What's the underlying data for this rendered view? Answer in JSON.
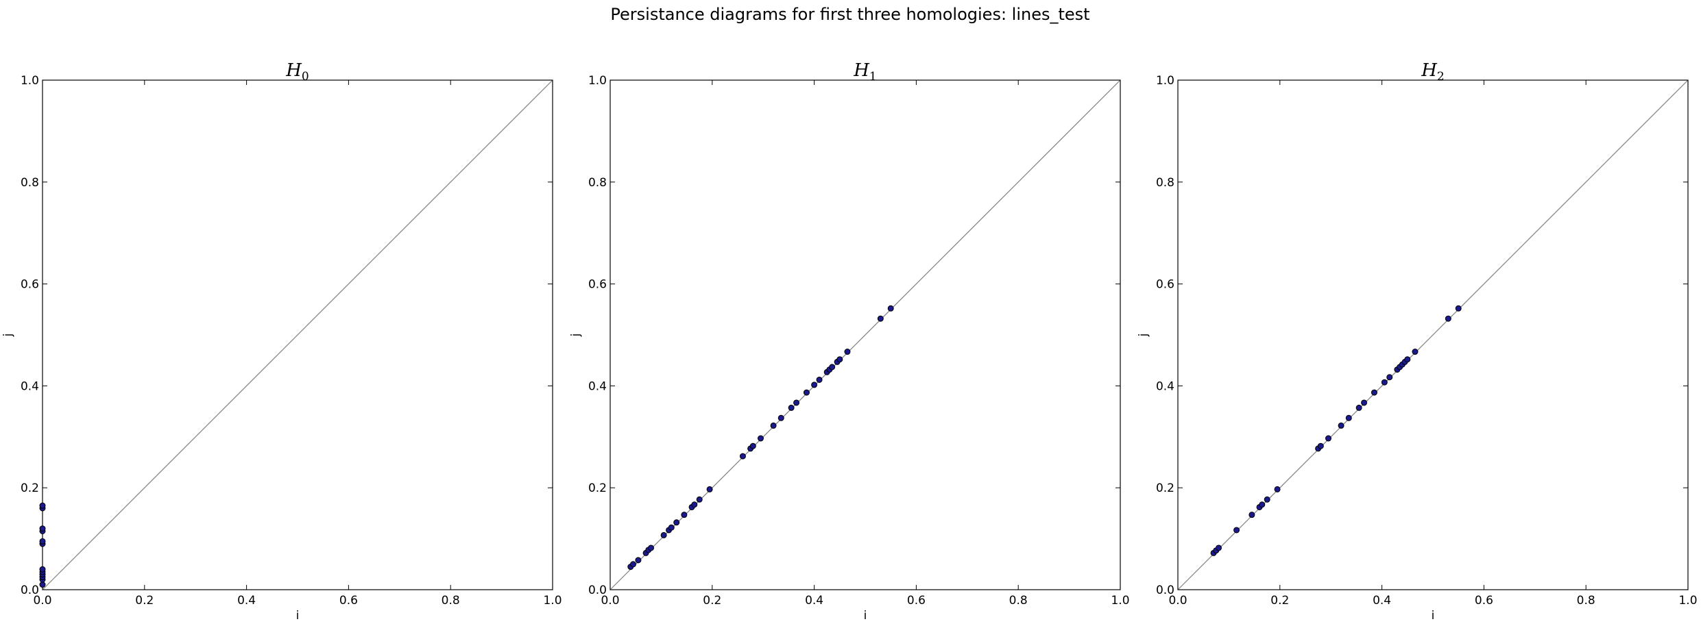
{
  "figure": {
    "suptitle": "Persistance diagrams for first three homologies: lines_test"
  },
  "chart_data": [
    {
      "type": "scatter",
      "title": "H",
      "title_subscript": "0",
      "xlabel": "i",
      "ylabel": "j",
      "xlim": [
        0,
        1
      ],
      "ylim": [
        0,
        1
      ],
      "xticks": [
        "0.0",
        "0.2",
        "0.4",
        "0.6",
        "0.8",
        "1.0"
      ],
      "yticks": [
        "0.0",
        "0.2",
        "0.4",
        "0.6",
        "0.8",
        "1.0"
      ],
      "grid": false,
      "diagonal": true,
      "point_color": "#1a1a8c",
      "points": [
        [
          0.0,
          0.01
        ],
        [
          0.0,
          0.02
        ],
        [
          0.0,
          0.025
        ],
        [
          0.0,
          0.03
        ],
        [
          0.0,
          0.035
        ],
        [
          0.0,
          0.04
        ],
        [
          0.0,
          0.09
        ],
        [
          0.0,
          0.095
        ],
        [
          0.0,
          0.115
        ],
        [
          0.0,
          0.12
        ],
        [
          0.0,
          0.16
        ],
        [
          0.0,
          0.165
        ]
      ]
    },
    {
      "type": "scatter",
      "title": "H",
      "title_subscript": "1",
      "xlabel": "i",
      "ylabel": "j",
      "xlim": [
        0,
        1
      ],
      "ylim": [
        0,
        1
      ],
      "xticks": [
        "0.0",
        "0.2",
        "0.4",
        "0.6",
        "0.8",
        "1.0"
      ],
      "yticks": [
        "0.0",
        "0.2",
        "0.4",
        "0.6",
        "0.8",
        "1.0"
      ],
      "grid": false,
      "diagonal": true,
      "point_color": "#1a1a8c",
      "points": [
        [
          0.04,
          0.045
        ],
        [
          0.045,
          0.05
        ],
        [
          0.055,
          0.058
        ],
        [
          0.07,
          0.072
        ],
        [
          0.075,
          0.078
        ],
        [
          0.08,
          0.082
        ],
        [
          0.105,
          0.107
        ],
        [
          0.115,
          0.117
        ],
        [
          0.12,
          0.122
        ],
        [
          0.13,
          0.132
        ],
        [
          0.145,
          0.147
        ],
        [
          0.16,
          0.162
        ],
        [
          0.165,
          0.167
        ],
        [
          0.175,
          0.177
        ],
        [
          0.195,
          0.197
        ],
        [
          0.26,
          0.262
        ],
        [
          0.275,
          0.277
        ],
        [
          0.28,
          0.282
        ],
        [
          0.295,
          0.297
        ],
        [
          0.32,
          0.322
        ],
        [
          0.335,
          0.337
        ],
        [
          0.355,
          0.357
        ],
        [
          0.365,
          0.367
        ],
        [
          0.385,
          0.387
        ],
        [
          0.4,
          0.402
        ],
        [
          0.41,
          0.412
        ],
        [
          0.425,
          0.427
        ],
        [
          0.43,
          0.432
        ],
        [
          0.435,
          0.437
        ],
        [
          0.445,
          0.447
        ],
        [
          0.45,
          0.452
        ],
        [
          0.465,
          0.467
        ],
        [
          0.53,
          0.532
        ],
        [
          0.55,
          0.552
        ]
      ]
    },
    {
      "type": "scatter",
      "title": "H",
      "title_subscript": "2",
      "xlabel": "i",
      "ylabel": "j",
      "xlim": [
        0,
        1
      ],
      "ylim": [
        0,
        1
      ],
      "xticks": [
        "0.0",
        "0.2",
        "0.4",
        "0.6",
        "0.8",
        "1.0"
      ],
      "yticks": [
        "0.0",
        "0.2",
        "0.4",
        "0.6",
        "0.8",
        "1.0"
      ],
      "grid": false,
      "diagonal": true,
      "point_color": "#1a1a8c",
      "points": [
        [
          0.07,
          0.072
        ],
        [
          0.075,
          0.077
        ],
        [
          0.08,
          0.082
        ],
        [
          0.115,
          0.117
        ],
        [
          0.145,
          0.147
        ],
        [
          0.16,
          0.162
        ],
        [
          0.165,
          0.167
        ],
        [
          0.175,
          0.177
        ],
        [
          0.195,
          0.197
        ],
        [
          0.275,
          0.277
        ],
        [
          0.28,
          0.282
        ],
        [
          0.295,
          0.297
        ],
        [
          0.32,
          0.322
        ],
        [
          0.335,
          0.337
        ],
        [
          0.355,
          0.357
        ],
        [
          0.365,
          0.367
        ],
        [
          0.385,
          0.387
        ],
        [
          0.405,
          0.407
        ],
        [
          0.415,
          0.417
        ],
        [
          0.43,
          0.432
        ],
        [
          0.435,
          0.437
        ],
        [
          0.44,
          0.442
        ],
        [
          0.445,
          0.447
        ],
        [
          0.45,
          0.452
        ],
        [
          0.465,
          0.467
        ],
        [
          0.53,
          0.532
        ],
        [
          0.55,
          0.552
        ]
      ]
    }
  ]
}
